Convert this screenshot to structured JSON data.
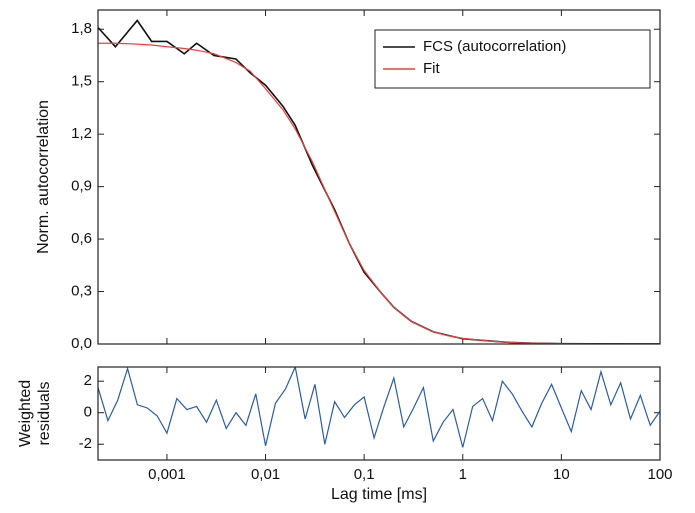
{
  "chart_data": [
    {
      "type": "line",
      "y_label": "Norm. autocorrelation",
      "xscale": "log",
      "xlim": [
        0.0002,
        100
      ],
      "ylim": [
        0,
        1.91
      ],
      "yticks": [
        {
          "value": 0,
          "label": "0,0"
        },
        {
          "value": 0.3,
          "label": "0,3"
        },
        {
          "value": 0.6,
          "label": "0,6"
        },
        {
          "value": 0.9,
          "label": "0,9"
        },
        {
          "value": 1.2,
          "label": "1,2"
        },
        {
          "value": 1.5,
          "label": "1,5"
        },
        {
          "value": 1.8,
          "label": "1,8"
        }
      ],
      "legend": "upper right",
      "x": [
        0.0002,
        0.0003,
        0.0005,
        0.0007,
        0.001,
        0.0015,
        0.002,
        0.003,
        0.005,
        0.007,
        0.01,
        0.015,
        0.02,
        0.03,
        0.05,
        0.07,
        0.1,
        0.15,
        0.2,
        0.3,
        0.5,
        0.7,
        1,
        2,
        3,
        5,
        10,
        20,
        50,
        100
      ],
      "series": [
        {
          "name": "FCS (autocorrelation)",
          "color": "#111111",
          "values": [
            1.81,
            1.7,
            1.85,
            1.73,
            1.73,
            1.66,
            1.72,
            1.65,
            1.63,
            1.55,
            1.48,
            1.36,
            1.25,
            1.02,
            0.77,
            0.58,
            0.41,
            0.29,
            0.21,
            0.13,
            0.07,
            0.05,
            0.03,
            0.016,
            0.009,
            0.005,
            0.002,
            0.001,
            0.0005,
            0.0001
          ]
        },
        {
          "name": "Fit",
          "color": "#e8413a",
          "values": [
            1.72,
            1.72,
            1.715,
            1.71,
            1.7,
            1.69,
            1.68,
            1.66,
            1.61,
            1.56,
            1.46,
            1.34,
            1.23,
            1.04,
            0.76,
            0.58,
            0.42,
            0.29,
            0.21,
            0.13,
            0.07,
            0.048,
            0.032,
            0.015,
            0.009,
            0.005,
            0.002,
            0.001,
            0.0004,
            0.0002
          ]
        }
      ]
    },
    {
      "type": "line",
      "y_label": [
        "Weighted",
        "residuals"
      ],
      "x_label": "Lag time [ms]",
      "xscale": "log",
      "xlim": [
        0.0002,
        100
      ],
      "ylim": [
        -3,
        2.9
      ],
      "yticks": [
        -2,
        0,
        2
      ],
      "xticks": [
        {
          "value": 0.001,
          "label": "0,001"
        },
        {
          "value": 0.01,
          "label": "0,01"
        },
        {
          "value": 0.1,
          "label": "0,1"
        },
        1,
        10,
        100
      ],
      "x": [
        0.0002,
        0.000252,
        0.000317,
        0.000399,
        0.000502,
        0.000632,
        0.000796,
        0.001,
        0.00126,
        0.00159,
        0.002,
        0.00252,
        0.00317,
        0.00399,
        0.00502,
        0.00632,
        0.00796,
        0.01,
        0.0126,
        0.0159,
        0.02,
        0.0252,
        0.0317,
        0.0399,
        0.0502,
        0.0632,
        0.0796,
        0.1,
        0.126,
        0.159,
        0.2,
        0.252,
        0.317,
        0.399,
        0.502,
        0.632,
        0.796,
        1,
        1.26,
        1.59,
        2,
        2.52,
        3.17,
        3.99,
        5.02,
        6.32,
        7.96,
        10,
        12.6,
        15.9,
        20,
        25.2,
        31.7,
        39.9,
        50.2,
        63.2,
        79.6,
        100
      ],
      "series": [
        {
          "color": "#2a5ca8",
          "values": [
            1.6,
            -0.5,
            0.8,
            2.8,
            0.5,
            0.3,
            -0.2,
            -1.3,
            0.9,
            0.2,
            0.4,
            -0.6,
            0.8,
            -1.0,
            0.0,
            -0.8,
            1.2,
            -2.1,
            0.6,
            1.5,
            2.9,
            -0.4,
            1.8,
            -2.0,
            0.7,
            -0.3,
            0.5,
            1.0,
            -1.6,
            0.4,
            2.2,
            -0.9,
            0.3,
            1.6,
            -1.8,
            -0.6,
            0.2,
            -2.2,
            0.4,
            0.9,
            -0.5,
            2.0,
            1.2,
            0.1,
            -0.9,
            0.6,
            1.8,
            0.3,
            -1.2,
            1.4,
            0.2,
            2.6,
            0.5,
            1.9,
            -0.4,
            1.1,
            -0.8,
            0.1
          ]
        }
      ]
    }
  ]
}
